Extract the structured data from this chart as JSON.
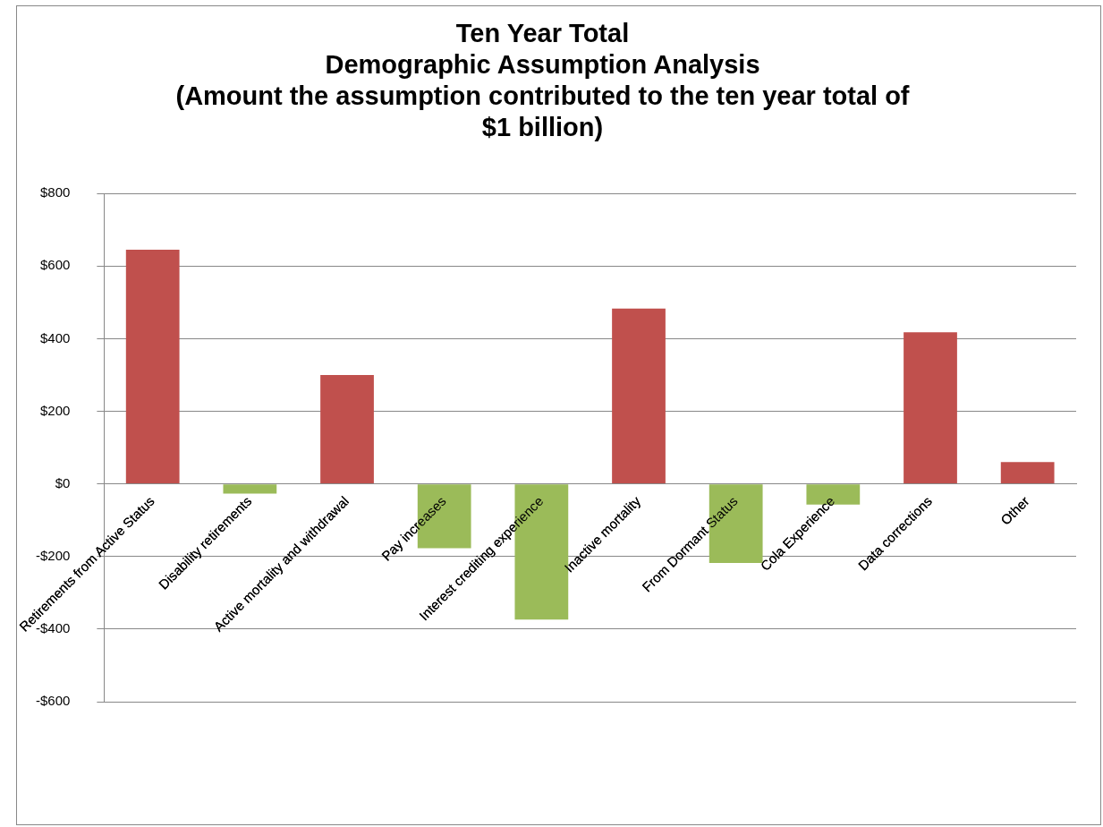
{
  "chart_data": {
    "type": "bar",
    "title": "Ten Year Total\nDemographic Assumption Analysis\n(Amount the assumption contributed to the ten year total of\n$1 billion)",
    "categories": [
      "Retirements from Active Status",
      "Disability retirements",
      "Active mortality and withdrawal",
      "Pay increases",
      "Interest crediting experience",
      "Inactive mortality",
      "From Dormant Status",
      "Cola Experience",
      "Data corrections",
      "Other"
    ],
    "values": [
      645,
      -27,
      300,
      -177,
      -374,
      483,
      -218,
      -57,
      418,
      60
    ],
    "colors": [
      "#c0504d",
      "#9bbb59",
      "#c0504d",
      "#9bbb59",
      "#9bbb59",
      "#c0504d",
      "#9bbb59",
      "#9bbb59",
      "#c0504d",
      "#c0504d"
    ],
    "ylim": [
      -600,
      800
    ],
    "yticks": [
      {
        "value": -600,
        "label": "-$600"
      },
      {
        "value": -400,
        "label": "-$400"
      },
      {
        "value": -200,
        "label": "-$200"
      },
      {
        "value": 0,
        "label": "$0"
      },
      {
        "value": 200,
        "label": "$200"
      },
      {
        "value": 400,
        "label": "$400"
      },
      {
        "value": 600,
        "label": "$600"
      },
      {
        "value": 800,
        "label": "$800"
      }
    ],
    "grid": "y",
    "legend": false
  }
}
